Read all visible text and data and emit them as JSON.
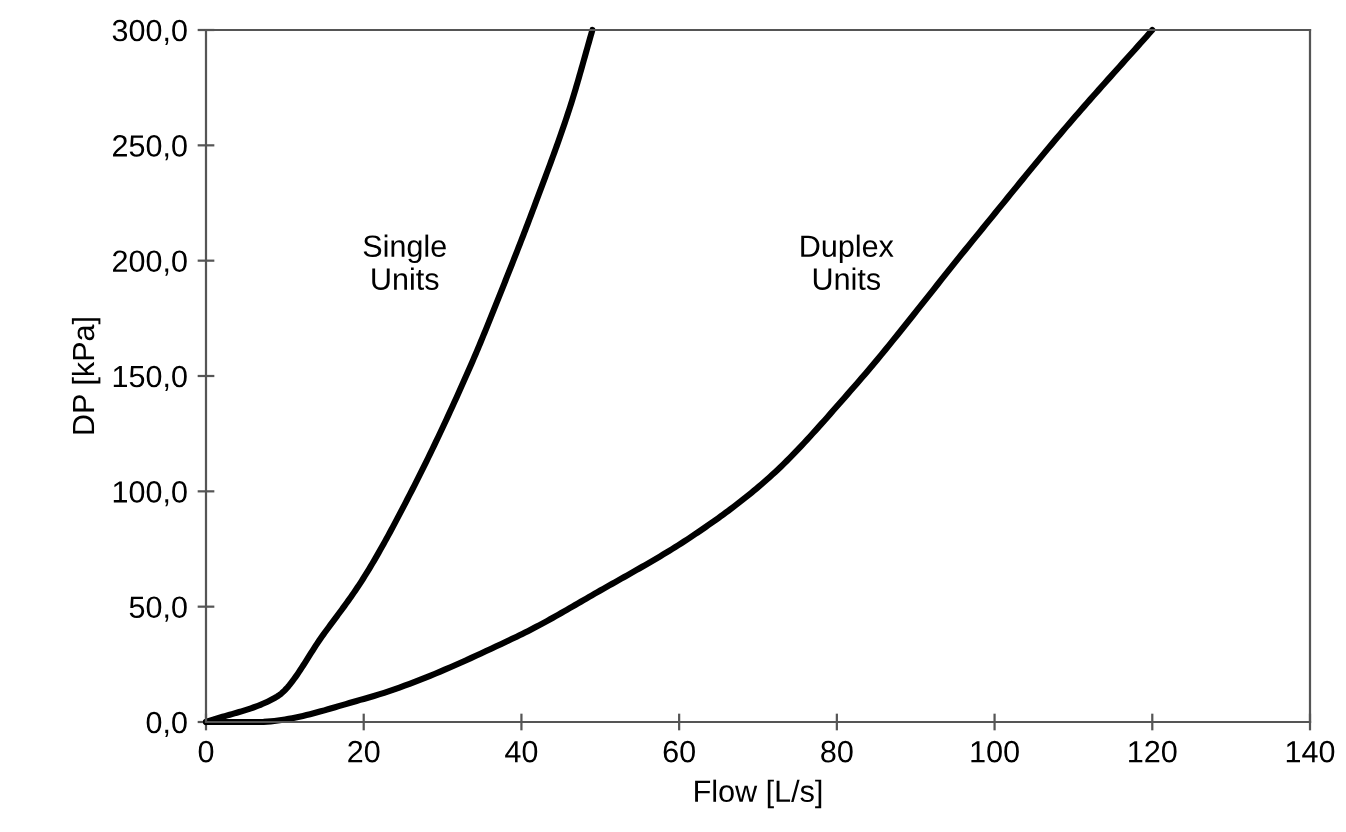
{
  "chart_data": {
    "type": "line",
    "xlabel": "Flow [L/s]",
    "ylabel": "DP [kPa]",
    "series": [
      {
        "color": "#000000",
        "x": [
          0,
          9,
          14.9,
          19.9,
          25.9,
          33.5,
          37.7,
          41.9,
          46.2,
          49
        ],
        "values": [
          0,
          11,
          38,
          62,
          99,
          154,
          189,
          226,
          267,
          300
        ]
      },
      {
        "color": "#000000",
        "x": [
          0,
          6.4,
          20,
          39.4,
          50,
          61.4,
          71.1,
          82.1,
          97.3,
          109.1,
          120
        ],
        "values": [
          0,
          0,
          10,
          37,
          57,
          80,
          105,
          145,
          209,
          258,
          300
        ]
      }
    ],
    "annotations": [
      "Single\nUnits",
      "Duplex\nUnits"
    ],
    "xlim": [
      0,
      140
    ],
    "xticks": [
      0,
      20,
      40,
      60,
      80,
      100,
      120,
      140
    ],
    "ylim": [
      0,
      300
    ],
    "yticks": [
      {
        "value": 0,
        "label": "0,0"
      },
      {
        "value": 50,
        "label": "50,0"
      },
      {
        "value": 100,
        "label": "100,0"
      },
      {
        "value": 150,
        "label": "150,0"
      },
      {
        "value": 200,
        "label": "200,0"
      },
      {
        "value": 250,
        "label": "250,0"
      },
      {
        "value": 300,
        "label": "300,0"
      }
    ],
    "grid": false,
    "legend": false,
    "marker": "none",
    "line_style": "solid"
  }
}
